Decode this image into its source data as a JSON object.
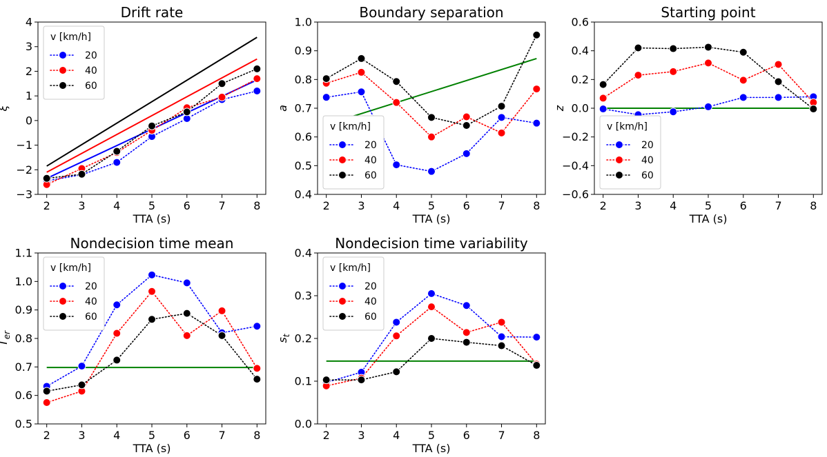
{
  "colors": {
    "20": "#0000ff",
    "40": "#ff0000",
    "60": "#000000",
    "model": "#008000"
  },
  "chart_data": [
    {
      "type": "line",
      "title": "Drift rate",
      "xlabel": "TTA (s)",
      "ylabel": "ξ",
      "xlim": [
        1.75,
        8.25
      ],
      "ylim": [
        -3,
        4
      ],
      "xticks": [
        2,
        3,
        4,
        5,
        6,
        7,
        8
      ],
      "yticks": [
        -3,
        -2,
        -1,
        0,
        1,
        2,
        3,
        4
      ],
      "ytick_labels": [
        "−3",
        "−2",
        "−1",
        "0",
        "1",
        "2",
        "3",
        "4"
      ],
      "legend": {
        "title": "v [km/h]",
        "position": "upper-left"
      },
      "x": [
        2,
        3,
        4,
        5,
        6,
        7,
        8
      ],
      "series": [
        {
          "name": "20",
          "color": "#0000ff",
          "values": [
            -2.45,
            -2.2,
            -1.7,
            -0.65,
            0.08,
            0.85,
            1.2
          ]
        },
        {
          "name": "40",
          "color": "#ff0000",
          "values": [
            -2.6,
            -1.95,
            -1.3,
            -0.4,
            0.52,
            0.95,
            1.7
          ]
        },
        {
          "name": "60",
          "color": "#000000",
          "values": [
            -2.35,
            -2.18,
            -1.25,
            -0.22,
            0.35,
            1.5,
            2.1
          ]
        }
      ],
      "model_lines": [
        {
          "color": "#0000ff",
          "x": [
            2,
            8
          ],
          "y": [
            -2.35,
            1.65
          ]
        },
        {
          "color": "#ff0000",
          "x": [
            2,
            8
          ],
          "y": [
            -2.1,
            2.5
          ]
        },
        {
          "color": "#000000",
          "x": [
            2,
            8
          ],
          "y": [
            -1.85,
            3.38
          ]
        }
      ]
    },
    {
      "type": "line",
      "title": "Boundary separation",
      "xlabel": "TTA (s)",
      "ylabel": "a",
      "xlim": [
        1.75,
        8.25
      ],
      "ylim": [
        0.4,
        1.0
      ],
      "xticks": [
        2,
        3,
        4,
        5,
        6,
        7,
        8
      ],
      "yticks": [
        0.4,
        0.5,
        0.6,
        0.7,
        0.8,
        0.9,
        1.0
      ],
      "ytick_labels": [
        "0.4",
        "0.5",
        "0.6",
        "0.7",
        "0.8",
        "0.9",
        "1.0"
      ],
      "legend": {
        "title": "v [km/h]",
        "position": "lower-left"
      },
      "x": [
        2,
        3,
        4,
        5,
        6,
        7,
        8
      ],
      "series": [
        {
          "name": "20",
          "color": "#0000ff",
          "values": [
            0.738,
            0.757,
            0.503,
            0.48,
            0.542,
            0.668,
            0.648
          ]
        },
        {
          "name": "40",
          "color": "#ff0000",
          "values": [
            0.787,
            0.825,
            0.72,
            0.6,
            0.67,
            0.614,
            0.767
          ]
        },
        {
          "name": "60",
          "color": "#000000",
          "values": [
            0.803,
            0.873,
            0.793,
            0.668,
            0.64,
            0.707,
            0.955
          ]
        }
      ],
      "model_lines": [
        {
          "color": "#008000",
          "x": [
            2,
            8
          ],
          "y": [
            0.643,
            0.873
          ]
        }
      ]
    },
    {
      "type": "line",
      "title": "Starting point",
      "xlabel": "TTA (s)",
      "ylabel": "z",
      "xlim": [
        1.75,
        8.25
      ],
      "ylim": [
        -0.6,
        0.6
      ],
      "xticks": [
        2,
        3,
        4,
        5,
        6,
        7,
        8
      ],
      "yticks": [
        -0.6,
        -0.4,
        -0.2,
        0.0,
        0.2,
        0.4,
        0.6
      ],
      "ytick_labels": [
        "−0.6",
        "−0.4",
        "−0.2",
        "0.0",
        "0.2",
        "0.4",
        "0.6"
      ],
      "legend": {
        "title": "v [km/h]",
        "position": "lower-left"
      },
      "x": [
        2,
        3,
        4,
        5,
        6,
        7,
        8
      ],
      "series": [
        {
          "name": "20",
          "color": "#0000ff",
          "values": [
            -0.005,
            -0.045,
            -0.025,
            0.01,
            0.075,
            0.075,
            0.08
          ]
        },
        {
          "name": "40",
          "color": "#ff0000",
          "values": [
            0.07,
            0.23,
            0.255,
            0.315,
            0.195,
            0.305,
            0.04
          ]
        },
        {
          "name": "60",
          "color": "#000000",
          "values": [
            0.165,
            0.42,
            0.415,
            0.425,
            0.39,
            0.185,
            -0.005
          ]
        }
      ],
      "model_lines": [
        {
          "color": "#008000",
          "x": [
            2,
            8
          ],
          "y": [
            0.0,
            0.0
          ]
        }
      ]
    },
    {
      "type": "line",
      "title": "Nondecision time mean",
      "xlabel": "TTA (s)",
      "ylabel": "T",
      "ylabel_sub": "er",
      "xlim": [
        1.75,
        8.25
      ],
      "ylim": [
        0.5,
        1.1
      ],
      "xticks": [
        2,
        3,
        4,
        5,
        6,
        7,
        8
      ],
      "yticks": [
        0.5,
        0.6,
        0.7,
        0.8,
        0.9,
        1.0,
        1.1
      ],
      "ytick_labels": [
        "0.5",
        "0.6",
        "0.7",
        "0.8",
        "0.9",
        "1.0",
        "1.1"
      ],
      "legend": {
        "title": "v [km/h]",
        "position": "upper-left"
      },
      "x": [
        2,
        3,
        4,
        5,
        6,
        7,
        8
      ],
      "series": [
        {
          "name": "20",
          "color": "#0000ff",
          "values": [
            0.632,
            0.703,
            0.918,
            1.023,
            0.995,
            0.82,
            0.843
          ]
        },
        {
          "name": "40",
          "color": "#ff0000",
          "values": [
            0.575,
            0.615,
            0.818,
            0.965,
            0.81,
            0.897,
            0.695
          ]
        },
        {
          "name": "60",
          "color": "#000000",
          "values": [
            0.615,
            0.637,
            0.724,
            0.867,
            0.888,
            0.81,
            0.657
          ]
        }
      ],
      "model_lines": [
        {
          "color": "#008000",
          "x": [
            2,
            8
          ],
          "y": [
            0.698,
            0.698
          ]
        }
      ]
    },
    {
      "type": "line",
      "title": "Nondecision time variability",
      "xlabel": "TTA (s)",
      "ylabel": "s",
      "ylabel_sub": "t",
      "xlim": [
        1.75,
        8.25
      ],
      "ylim": [
        0.0,
        0.4
      ],
      "xticks": [
        2,
        3,
        4,
        5,
        6,
        7,
        8
      ],
      "yticks": [
        0.0,
        0.1,
        0.2,
        0.3,
        0.4
      ],
      "ytick_labels": [
        "0.0",
        "0.1",
        "0.2",
        "0.3",
        "0.4"
      ],
      "legend": {
        "title": "v [km/h]",
        "position": "upper-left"
      },
      "x": [
        2,
        3,
        4,
        5,
        6,
        7,
        8
      ],
      "series": [
        {
          "name": "20",
          "color": "#0000ff",
          "values": [
            0.097,
            0.121,
            0.238,
            0.305,
            0.277,
            0.204,
            0.203
          ]
        },
        {
          "name": "40",
          "color": "#ff0000",
          "values": [
            0.089,
            0.107,
            0.206,
            0.274,
            0.214,
            0.238,
            0.14
          ]
        },
        {
          "name": "60",
          "color": "#000000",
          "values": [
            0.103,
            0.103,
            0.122,
            0.2,
            0.191,
            0.183,
            0.137
          ]
        }
      ],
      "model_lines": [
        {
          "color": "#008000",
          "x": [
            2,
            8
          ],
          "y": [
            0.147,
            0.147
          ]
        }
      ]
    }
  ]
}
